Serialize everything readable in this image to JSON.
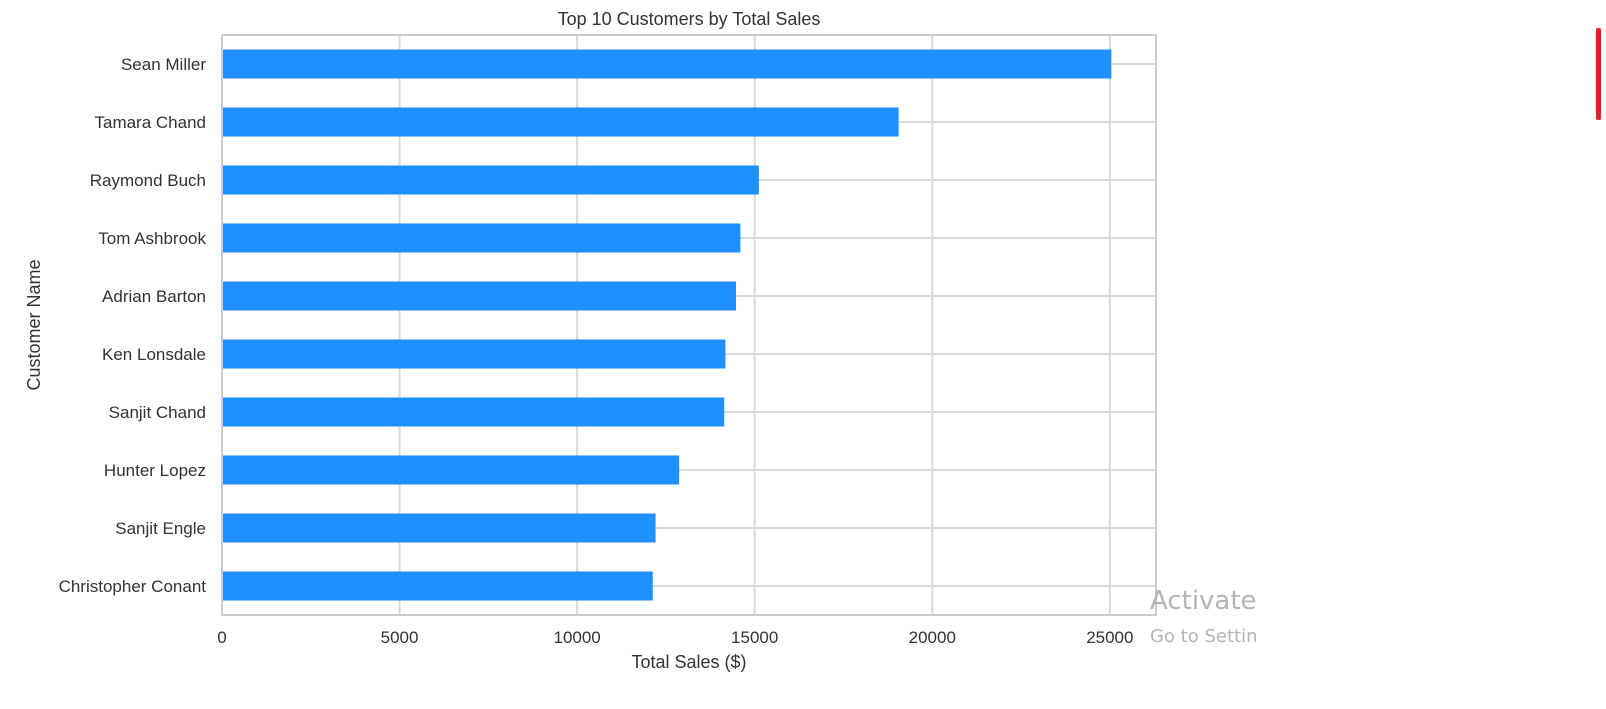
{
  "chart_data": {
    "type": "bar",
    "orientation": "horizontal",
    "title": "Top 10 Customers by Total Sales",
    "xlabel": "Total Sales ($)",
    "ylabel": "Customer Name",
    "categories": [
      "Sean Miller",
      "Tamara Chand",
      "Raymond Buch",
      "Tom Ashbrook",
      "Adrian Barton",
      "Ken Lonsdale",
      "Sanjit Chand",
      "Hunter Lopez",
      "Sanjit Engle",
      "Christopher Conant"
    ],
    "values": [
      25043,
      19052,
      15117,
      14596,
      14474,
      14175,
      14142,
      12873,
      12209,
      12129
    ],
    "xlim": [
      0,
      26300
    ],
    "xticks": [
      0,
      5000,
      10000,
      15000,
      20000,
      25000
    ],
    "grid": true,
    "bar_color": "#1e90ff"
  },
  "overlay": {
    "watermark_line1": "Activate",
    "watermark_line2": "Go to Settin",
    "mark_color": "#e0202a"
  }
}
